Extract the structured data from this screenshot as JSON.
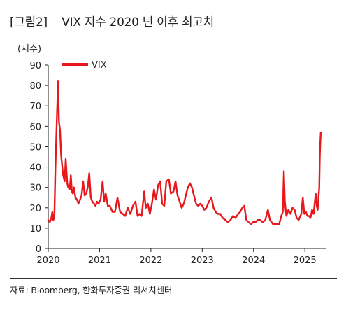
{
  "header": {
    "title": "[그림2]    VIX 지수 2020 년 이후 최고치"
  },
  "footer": {
    "source": "자료: Bloomberg, 한화투자증권 리서치센터"
  },
  "chart_data": {
    "type": "line",
    "ylabel": "(지수)",
    "ylim": [
      0,
      90
    ],
    "yticks": [
      0,
      10,
      20,
      30,
      40,
      50,
      60,
      70,
      80,
      90
    ],
    "xlim": [
      2020,
      2025.42
    ],
    "xticks": [
      "2020",
      "2021",
      "2022",
      "2023",
      "2024",
      "2025"
    ],
    "grid": false,
    "legend": {
      "position": "top-left"
    },
    "series": [
      {
        "name": "VIX",
        "color": "#e8171b",
        "points": [
          [
            2020.0,
            14
          ],
          [
            2020.03,
            13
          ],
          [
            2020.06,
            15
          ],
          [
            2020.08,
            18
          ],
          [
            2020.1,
            14
          ],
          [
            2020.12,
            16
          ],
          [
            2020.14,
            40
          ],
          [
            2020.16,
            57
          ],
          [
            2020.19,
            82
          ],
          [
            2020.21,
            62
          ],
          [
            2020.23,
            58
          ],
          [
            2020.25,
            46
          ],
          [
            2020.27,
            41
          ],
          [
            2020.29,
            36
          ],
          [
            2020.32,
            33
          ],
          [
            2020.34,
            44
          ],
          [
            2020.37,
            32
          ],
          [
            2020.39,
            30
          ],
          [
            2020.42,
            29
          ],
          [
            2020.44,
            36
          ],
          [
            2020.46,
            28
          ],
          [
            2020.48,
            27
          ],
          [
            2020.5,
            30
          ],
          [
            2020.53,
            25
          ],
          [
            2020.56,
            24
          ],
          [
            2020.59,
            22
          ],
          [
            2020.62,
            24
          ],
          [
            2020.65,
            26
          ],
          [
            2020.68,
            33
          ],
          [
            2020.71,
            26
          ],
          [
            2020.74,
            27
          ],
          [
            2020.77,
            30
          ],
          [
            2020.8,
            37
          ],
          [
            2020.83,
            25
          ],
          [
            2020.86,
            23
          ],
          [
            2020.89,
            22
          ],
          [
            2020.92,
            21
          ],
          [
            2020.95,
            23
          ],
          [
            2020.98,
            22
          ],
          [
            2021.02,
            24
          ],
          [
            2021.06,
            33
          ],
          [
            2021.09,
            23
          ],
          [
            2021.12,
            27
          ],
          [
            2021.16,
            21
          ],
          [
            2021.2,
            21
          ],
          [
            2021.25,
            18
          ],
          [
            2021.3,
            18
          ],
          [
            2021.35,
            25
          ],
          [
            2021.4,
            18
          ],
          [
            2021.45,
            17
          ],
          [
            2021.5,
            16
          ],
          [
            2021.55,
            20
          ],
          [
            2021.6,
            17
          ],
          [
            2021.65,
            21
          ],
          [
            2021.7,
            23
          ],
          [
            2021.74,
            16
          ],
          [
            2021.78,
            17
          ],
          [
            2021.82,
            16
          ],
          [
            2021.87,
            28
          ],
          [
            2021.9,
            20
          ],
          [
            2021.94,
            22
          ],
          [
            2021.98,
            17
          ],
          [
            2022.02,
            22
          ],
          [
            2022.06,
            29
          ],
          [
            2022.1,
            24
          ],
          [
            2022.14,
            31
          ],
          [
            2022.18,
            33
          ],
          [
            2022.22,
            22
          ],
          [
            2022.26,
            21
          ],
          [
            2022.3,
            33
          ],
          [
            2022.35,
            34
          ],
          [
            2022.39,
            27
          ],
          [
            2022.44,
            28
          ],
          [
            2022.48,
            33
          ],
          [
            2022.52,
            26
          ],
          [
            2022.56,
            23
          ],
          [
            2022.6,
            20
          ],
          [
            2022.64,
            22
          ],
          [
            2022.68,
            26
          ],
          [
            2022.72,
            30
          ],
          [
            2022.76,
            32
          ],
          [
            2022.8,
            30
          ],
          [
            2022.84,
            26
          ],
          [
            2022.88,
            22
          ],
          [
            2022.92,
            21
          ],
          [
            2022.96,
            22
          ],
          [
            2023.0,
            21
          ],
          [
            2023.04,
            19
          ],
          [
            2023.08,
            20
          ],
          [
            2023.13,
            23
          ],
          [
            2023.18,
            25
          ],
          [
            2023.22,
            20
          ],
          [
            2023.26,
            18
          ],
          [
            2023.3,
            17
          ],
          [
            2023.35,
            17
          ],
          [
            2023.4,
            15
          ],
          [
            2023.45,
            14
          ],
          [
            2023.5,
            13
          ],
          [
            2023.55,
            14
          ],
          [
            2023.6,
            16
          ],
          [
            2023.65,
            15
          ],
          [
            2023.7,
            17
          ],
          [
            2023.74,
            18
          ],
          [
            2023.78,
            20
          ],
          [
            2023.82,
            21
          ],
          [
            2023.86,
            14
          ],
          [
            2023.9,
            13
          ],
          [
            2023.95,
            12
          ],
          [
            2023.99,
            13
          ],
          [
            2024.04,
            13
          ],
          [
            2024.08,
            14
          ],
          [
            2024.13,
            14
          ],
          [
            2024.18,
            13
          ],
          [
            2024.23,
            14
          ],
          [
            2024.28,
            19
          ],
          [
            2024.32,
            14
          ],
          [
            2024.38,
            12
          ],
          [
            2024.44,
            12
          ],
          [
            2024.5,
            12
          ],
          [
            2024.54,
            16
          ],
          [
            2024.57,
            18
          ],
          [
            2024.59,
            38
          ],
          [
            2024.61,
            23
          ],
          [
            2024.64,
            16
          ],
          [
            2024.68,
            19
          ],
          [
            2024.72,
            17
          ],
          [
            2024.76,
            20
          ],
          [
            2024.8,
            19
          ],
          [
            2024.84,
            15
          ],
          [
            2024.88,
            14
          ],
          [
            2024.93,
            17
          ],
          [
            2024.96,
            25
          ],
          [
            2024.99,
            17
          ],
          [
            2025.02,
            18
          ],
          [
            2025.05,
            16
          ],
          [
            2025.08,
            16
          ],
          [
            2025.11,
            15
          ],
          [
            2025.14,
            19
          ],
          [
            2025.17,
            17
          ],
          [
            2025.19,
            22
          ],
          [
            2025.21,
            27
          ],
          [
            2025.23,
            21
          ],
          [
            2025.25,
            19
          ],
          [
            2025.26,
            23
          ],
          [
            2025.28,
            30
          ],
          [
            2025.29,
            45
          ],
          [
            2025.3,
            52
          ],
          [
            2025.31,
            57
          ]
        ]
      }
    ]
  }
}
